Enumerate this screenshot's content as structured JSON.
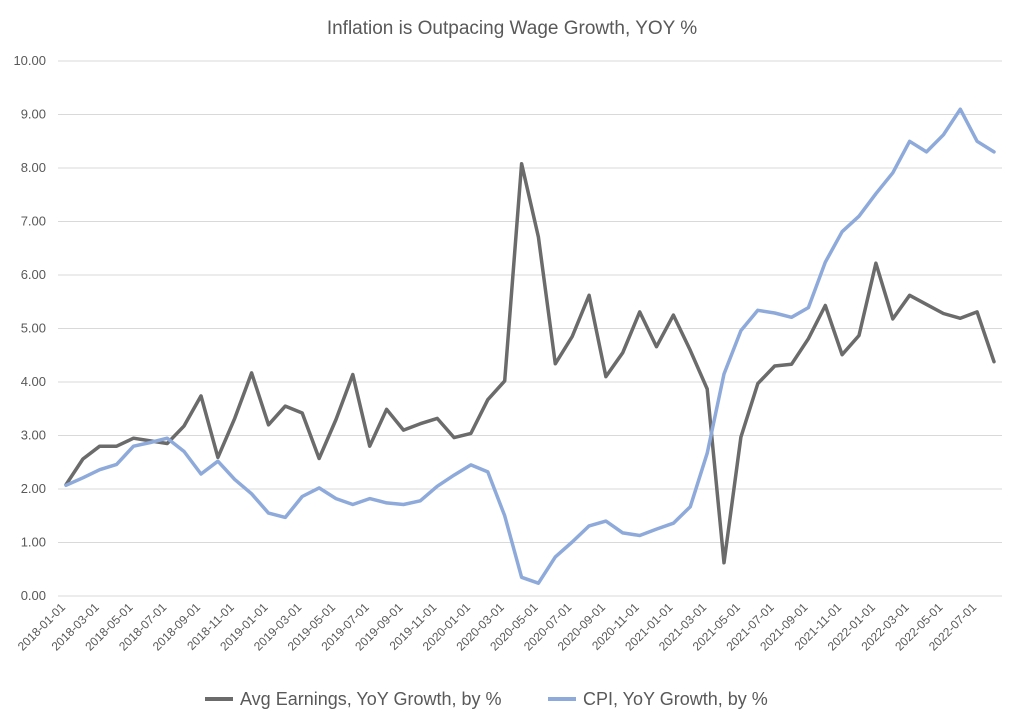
{
  "chart_data": {
    "type": "line",
    "title": "Inflation is Outpacing Wage Growth, YOY %",
    "xlabel": "",
    "ylabel": "",
    "ylim": [
      0,
      10
    ],
    "yticks": [
      "0.00",
      "1.00",
      "2.00",
      "3.00",
      "4.00",
      "5.00",
      "6.00",
      "7.00",
      "8.00",
      "9.00",
      "10.00"
    ],
    "grid": true,
    "legend_position": "bottom",
    "x": [
      "2018-01-01",
      "2018-02-01",
      "2018-03-01",
      "2018-04-01",
      "2018-05-01",
      "2018-06-01",
      "2018-07-01",
      "2018-08-01",
      "2018-09-01",
      "2018-10-01",
      "2018-11-01",
      "2018-12-01",
      "2019-01-01",
      "2019-02-01",
      "2019-03-01",
      "2019-04-01",
      "2019-05-01",
      "2019-06-01",
      "2019-07-01",
      "2019-08-01",
      "2019-09-01",
      "2019-10-01",
      "2019-11-01",
      "2019-12-01",
      "2020-01-01",
      "2020-02-01",
      "2020-03-01",
      "2020-04-01",
      "2020-05-01",
      "2020-06-01",
      "2020-07-01",
      "2020-08-01",
      "2020-09-01",
      "2020-10-01",
      "2020-11-01",
      "2020-12-01",
      "2021-01-01",
      "2021-02-01",
      "2021-03-01",
      "2021-04-01",
      "2021-05-01",
      "2021-06-01",
      "2021-07-01",
      "2021-08-01",
      "2021-09-01",
      "2021-10-01",
      "2021-11-01",
      "2021-12-01",
      "2022-01-01",
      "2022-02-01",
      "2022-03-01",
      "2022-04-01",
      "2022-05-01",
      "2022-06-01",
      "2022-07-01",
      "2022-08-01"
    ],
    "xtick_labels": [
      "2018-01-01",
      "2018-03-01",
      "2018-05-01",
      "2018-07-01",
      "2018-09-01",
      "2018-11-01",
      "2019-01-01",
      "2019-03-01",
      "2019-05-01",
      "2019-07-01",
      "2019-09-01",
      "2019-11-01",
      "2020-01-01",
      "2020-03-01",
      "2020-05-01",
      "2020-07-01",
      "2020-09-01",
      "2020-11-01",
      "2021-01-01",
      "2021-03-01",
      "2021-05-01",
      "2021-07-01",
      "2021-09-01",
      "2021-11-01",
      "2022-01-01",
      "2022-03-01",
      "2022-05-01",
      "2022-07-01"
    ],
    "series": [
      {
        "name": "Avg Earnings, YoY Growth, by %",
        "color": "#6b6b6b",
        "values": [
          2.08,
          2.56,
          2.8,
          2.8,
          2.95,
          2.9,
          2.85,
          3.18,
          3.74,
          2.59,
          3.32,
          4.17,
          3.2,
          3.55,
          3.42,
          2.57,
          3.3,
          4.14,
          2.8,
          3.49,
          3.1,
          3.22,
          3.32,
          2.96,
          3.04,
          3.67,
          4.02,
          8.08,
          6.71,
          4.34,
          4.85,
          5.62,
          4.1,
          4.55,
          5.31,
          4.66,
          5.25,
          4.59,
          3.87,
          0.62,
          2.97,
          3.97,
          4.3,
          4.33,
          4.81,
          5.43,
          4.51,
          4.87,
          6.22,
          5.18,
          5.62,
          5.45,
          5.28,
          5.19,
          5.31,
          4.38
        ]
      },
      {
        "name": "CPI, YoY Growth, by %",
        "color": "#8eaadb",
        "values": [
          2.07,
          2.21,
          2.36,
          2.46,
          2.8,
          2.87,
          2.95,
          2.7,
          2.28,
          2.52,
          2.18,
          1.91,
          1.55,
          1.47,
          1.86,
          2.02,
          1.82,
          1.71,
          1.82,
          1.74,
          1.71,
          1.78,
          2.05,
          2.26,
          2.45,
          2.32,
          1.5,
          0.35,
          0.24,
          0.73,
          1.01,
          1.31,
          1.4,
          1.18,
          1.13,
          1.25,
          1.36,
          1.67,
          2.67,
          4.15,
          4.96,
          5.34,
          5.29,
          5.21,
          5.39,
          6.24,
          6.81,
          7.1,
          7.52,
          7.91,
          8.5,
          8.3,
          8.62,
          9.1,
          8.5,
          8.3
        ]
      }
    ]
  }
}
